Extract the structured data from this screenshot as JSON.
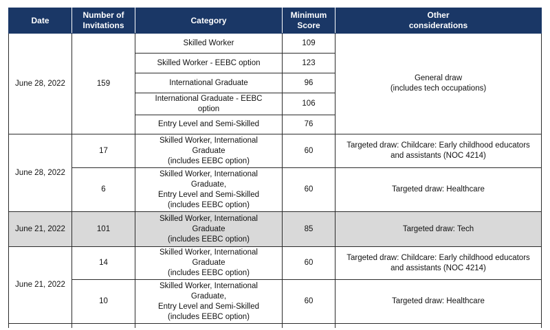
{
  "header": {
    "date": "Date",
    "invitations": "Number of\nInvitations",
    "category": "Category",
    "score": "Minimum\nScore",
    "other": "Other\nconsiderations"
  },
  "rows": [
    {
      "date": "June 28, 2022",
      "invitations": "159",
      "other": "General draw\n(includes tech occupations)",
      "categories": [
        {
          "category": "Skilled Worker",
          "score": "109"
        },
        {
          "category": "Skilled Worker - EEBC option",
          "score": "123"
        },
        {
          "category": "International Graduate",
          "score": "96"
        },
        {
          "category": "International Graduate - EEBC\noption",
          "score": "106"
        },
        {
          "category": "Entry Level and Semi-Skilled",
          "score": "76"
        }
      ]
    },
    {
      "date": "June 28, 2022",
      "subrows": [
        {
          "invitations": "17",
          "category": "Skilled Worker, International\nGraduate\n(includes EEBC option)",
          "score": "60",
          "other": "Targeted draw: Childcare: Early childhood educators\nand assistants (NOC 4214)"
        },
        {
          "invitations": "6",
          "category": "Skilled Worker, International\nGraduate,\nEntry Level and Semi-Skilled\n(includes EEBC option)",
          "score": "60",
          "other": "Targeted draw: Healthcare"
        }
      ]
    },
    {
      "date": "June 21, 2022",
      "invitations": "101",
      "category": "Skilled Worker, International\nGraduate\n(includes EEBC option)",
      "score": "85",
      "other": "Targeted draw: Tech"
    },
    {
      "date": "June 21, 2022",
      "subrows": [
        {
          "invitations": "14",
          "category": "Skilled Worker, International\nGraduate\n(includes EEBC option)",
          "score": "60",
          "other": "Targeted draw: Childcare: Early childhood educators\nand assistants (NOC 4214)"
        },
        {
          "invitations": "10",
          "category": "Skilled Worker, International\nGraduate,\nEntry Level and Semi-Skilled\n(includes EEBC option)",
          "score": "60",
          "other": "Targeted draw: Healthcare"
        }
      ]
    }
  ]
}
